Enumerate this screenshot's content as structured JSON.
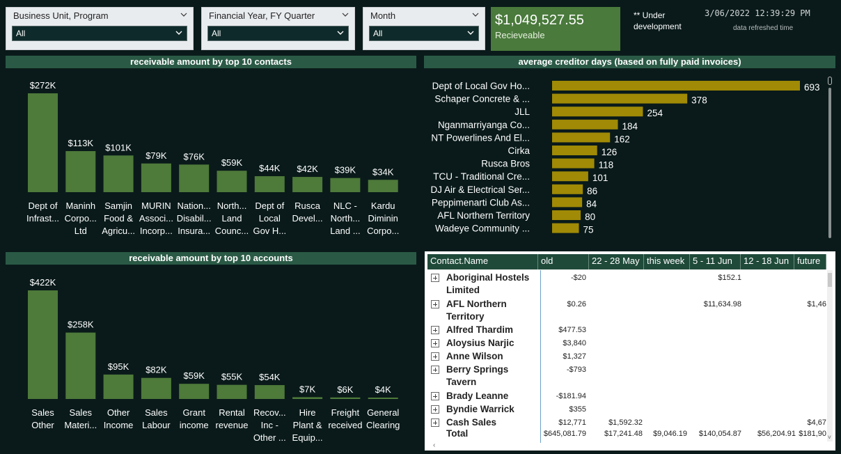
{
  "slicers": [
    {
      "title": "Business Unit, Program",
      "value": "All"
    },
    {
      "title": "Financial Year, FY Quarter",
      "value": "All"
    },
    {
      "title": "Month",
      "value": "All"
    }
  ],
  "kpi": {
    "value": "$1,049,527.55",
    "label": "Recieveable"
  },
  "note": {
    "line1": "** Under",
    "line2": "development"
  },
  "refresh": {
    "timestamp": "3/06/2022 12:39:29 PM",
    "label": "data refreshed time"
  },
  "colors": {
    "bar_green": "#4e7a3a",
    "bar_gold": "#a08a06",
    "header_bg": "#2a5a46",
    "kpi_bg": "#4a7a3c"
  },
  "contacts_chart": {
    "title": "receivable amount by top 10 contacts",
    "chart_data": {
      "type": "bar",
      "categories": [
        [
          "Dept of",
          "Infrast..."
        ],
        [
          "Maninh",
          "Corpo...",
          "Ltd"
        ],
        [
          "Samjin",
          "Food &",
          "Agricu..."
        ],
        [
          "MURIN",
          "Associ...",
          "Incorp..."
        ],
        [
          "Nation...",
          "Disabil...",
          "Insura..."
        ],
        [
          "North...",
          "Land",
          "Counc..."
        ],
        [
          "Dept of",
          "Local",
          "Gov H..."
        ],
        [
          "Rusca",
          "Devel..."
        ],
        [
          "NLC -",
          "North...",
          "Land ..."
        ],
        [
          "Kardu",
          "Diminin",
          "Corpo..."
        ]
      ],
      "values": [
        272,
        113,
        101,
        79,
        76,
        59,
        44,
        42,
        39,
        34
      ],
      "labels": [
        "$272K",
        "$113K",
        "$101K",
        "$79K",
        "$76K",
        "$59K",
        "$44K",
        "$42K",
        "$39K",
        "$34K"
      ]
    }
  },
  "accounts_chart": {
    "title": "receivable amount by top 10 accounts",
    "chart_data": {
      "type": "bar",
      "categories": [
        [
          "Sales",
          "Other"
        ],
        [
          "Sales",
          "Materi..."
        ],
        [
          "Other",
          "Income"
        ],
        [
          "Sales",
          "Labour"
        ],
        [
          "Grant",
          "income"
        ],
        [
          "Rental",
          "revenue"
        ],
        [
          "Recov...",
          "Inc -",
          "Other ..."
        ],
        [
          "Hire",
          "Plant &",
          "Equip..."
        ],
        [
          "Freight",
          "received"
        ],
        [
          "General",
          "Clearing"
        ]
      ],
      "values": [
        422,
        258,
        95,
        82,
        59,
        55,
        54,
        7,
        6,
        4
      ],
      "labels": [
        "$422K",
        "$258K",
        "$95K",
        "$82K",
        "$59K",
        "$55K",
        "$54K",
        "$7K",
        "$6K",
        "$4K"
      ]
    }
  },
  "creditor_chart": {
    "title": "average creditor days (based on fully paid invoices)",
    "chart_data": {
      "type": "bar",
      "orientation": "horizontal",
      "categories": [
        "Dept of Local Gov Ho...",
        "Schaper Concrete & ...",
        "JLL",
        "Nganmarriyanga Co...",
        "NT Powerlines And El...",
        "Cirka",
        "Rusca Bros",
        "TCU - Traditional Cre...",
        "DJ Air & Electrical Ser...",
        "Peppimenarti Club As...",
        "AFL Northern Territory",
        "Wadeye Community ..."
      ],
      "values": [
        693,
        378,
        254,
        184,
        162,
        126,
        118,
        101,
        86,
        84,
        80,
        75
      ]
    }
  },
  "matrix": {
    "columns": [
      "Contact.Name",
      "old",
      "22 - 28 May",
      "this week",
      "5 - 11 Jun",
      "12 - 18 Jun",
      "future"
    ],
    "rows": [
      {
        "name": "Aboriginal Hostels Limited",
        "cells": [
          "-$20",
          "",
          "",
          "$152.1",
          "",
          ""
        ]
      },
      {
        "name": "AFL Northern Territory",
        "cells": [
          "$0.26",
          "",
          "",
          "$11,634.98",
          "",
          "$1,46"
        ]
      },
      {
        "name": "Alfred Thardim",
        "cells": [
          "$477.53",
          "",
          "",
          "",
          "",
          ""
        ]
      },
      {
        "name": "Aloysius Narjic",
        "cells": [
          "$3,840",
          "",
          "",
          "",
          "",
          ""
        ]
      },
      {
        "name": "Anne Wilson",
        "cells": [
          "$1,327",
          "",
          "",
          "",
          "",
          ""
        ]
      },
      {
        "name": "Berry Springs Tavern",
        "cells": [
          "-$793",
          "",
          "",
          "",
          "",
          ""
        ]
      },
      {
        "name": "Brady Leanne",
        "cells": [
          "-$181.94",
          "",
          "",
          "",
          "",
          ""
        ]
      },
      {
        "name": "Byndie Warrick",
        "cells": [
          "$355",
          "",
          "",
          "",
          "",
          ""
        ]
      },
      {
        "name": "Cash Sales",
        "cells": [
          "$12,771",
          "$1,592.32",
          "",
          "",
          "",
          "$4,67"
        ]
      }
    ],
    "total": {
      "name": "Total",
      "cells": [
        "$645,081.79",
        "$17,241.48",
        "$9,046.19",
        "$140,054.87",
        "$56,204.91",
        "$181,90"
      ]
    }
  }
}
